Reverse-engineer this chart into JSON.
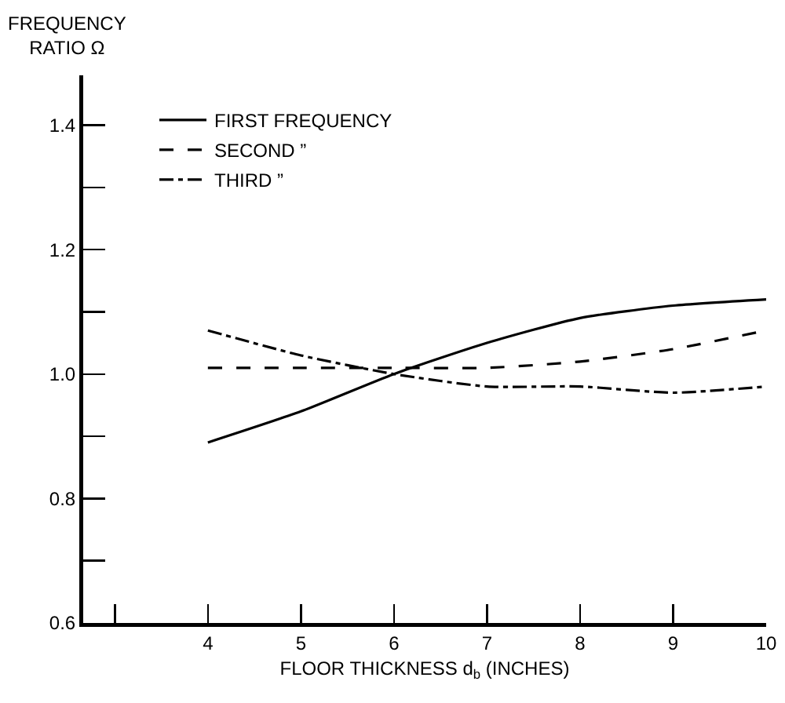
{
  "chart_data": {
    "type": "line",
    "ylabel": "FREQUENCY\nRATIO Ω",
    "xlabel": "FLOOR THICKNESS d$_{b}$ (INCHES)",
    "x": [
      4,
      5,
      6,
      7,
      8,
      9,
      10
    ],
    "series": [
      {
        "name": "FIRST FREQUENCY",
        "color": "#000000",
        "line_style": "solid",
        "values": [
          0.89,
          0.94,
          1.0,
          1.05,
          1.09,
          1.11,
          1.12
        ]
      },
      {
        "name": "SECOND ”",
        "color": "#000000",
        "line_style": "dashed",
        "values": [
          1.01,
          1.01,
          1.01,
          1.01,
          1.02,
          1.04,
          1.07
        ]
      },
      {
        "name": "THIRD ”",
        "color": "#000000",
        "line_style": "dashdot",
        "values": [
          1.07,
          1.03,
          1.0,
          0.98,
          0.98,
          0.97,
          0.98
        ]
      }
    ],
    "xlim": [
      2.66,
      10
    ],
    "xticks": [
      {
        "value": 3,
        "label": null
      },
      4,
      5,
      6,
      7,
      8,
      9,
      10
    ],
    "ylim": [
      0.6,
      1.48
    ],
    "yticks": [
      0.6,
      {
        "value": 0.7,
        "label": null
      },
      0.8,
      {
        "value": 0.9,
        "label": null
      },
      {
        "value": 1,
        "label": "1.0"
      },
      {
        "value": 1.1,
        "label": null
      },
      1.2,
      {
        "value": 1.3,
        "label": null
      },
      1.4
    ],
    "grid": false,
    "legend": "top left",
    "marker": "none"
  }
}
